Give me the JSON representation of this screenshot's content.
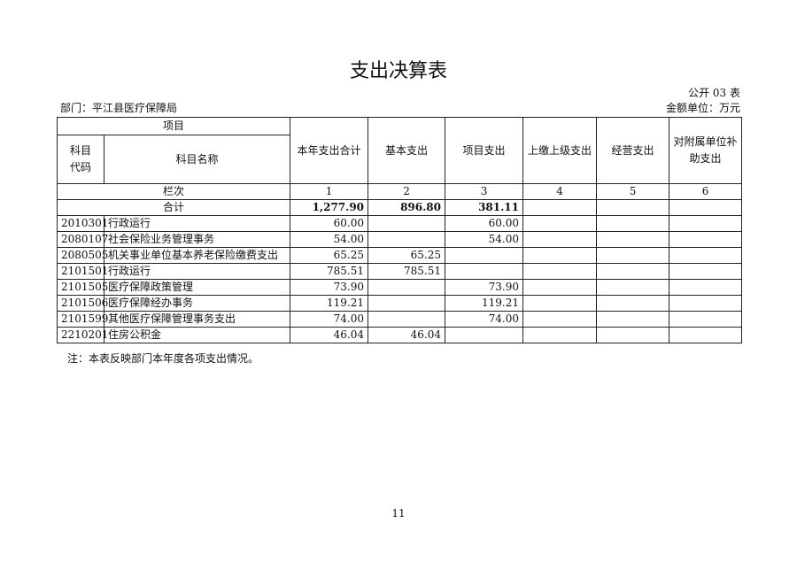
{
  "title": "支出决算表",
  "form_no": "公开 03 表",
  "department": "部门：平江县医疗保障局",
  "unit": "金额单位：万元",
  "headers": {
    "item": "项目",
    "code": "科目代码",
    "name": "科目名称",
    "total": "本年支出合计",
    "basic": "基本支出",
    "project": "项目支出",
    "upper": "上缴上级支出",
    "business": "经营支出",
    "subsidy": "对附属单位补助支出"
  },
  "col_index": {
    "label": "栏次",
    "c1": "1",
    "c2": "2",
    "c3": "3",
    "c4": "4",
    "c5": "5",
    "c6": "6"
  },
  "total_row": {
    "label": "合计",
    "total": "1,277.90",
    "basic": "896.80",
    "project": "381.11",
    "upper": "",
    "business": "",
    "subsidy": ""
  },
  "rows": [
    {
      "code": "2010301",
      "name": "行政运行",
      "total": "60.00",
      "basic": "",
      "project": "60.00"
    },
    {
      "code": "2080107",
      "name": "社会保险业务管理事务",
      "total": "54.00",
      "basic": "",
      "project": "54.00"
    },
    {
      "code": "2080505",
      "name": "机关事业单位基本养老保险缴费支出",
      "total": "65.25",
      "basic": "65.25",
      "project": ""
    },
    {
      "code": "2101501",
      "name": "行政运行",
      "total": "785.51",
      "basic": "785.51",
      "project": ""
    },
    {
      "code": "2101505",
      "name": "医疗保障政策管理",
      "total": "73.90",
      "basic": "",
      "project": "73.90"
    },
    {
      "code": "2101506",
      "name": "医疗保障经办事务",
      "total": "119.21",
      "basic": "",
      "project": "119.21"
    },
    {
      "code": "2101599",
      "name": "其他医疗保障管理事务支出",
      "total": "74.00",
      "basic": "",
      "project": "74.00"
    },
    {
      "code": "2210201",
      "name": "住房公积金",
      "total": "46.04",
      "basic": "46.04",
      "project": ""
    }
  ],
  "note": "注：本表反映部门本年度各项支出情况。",
  "page_number": "11"
}
